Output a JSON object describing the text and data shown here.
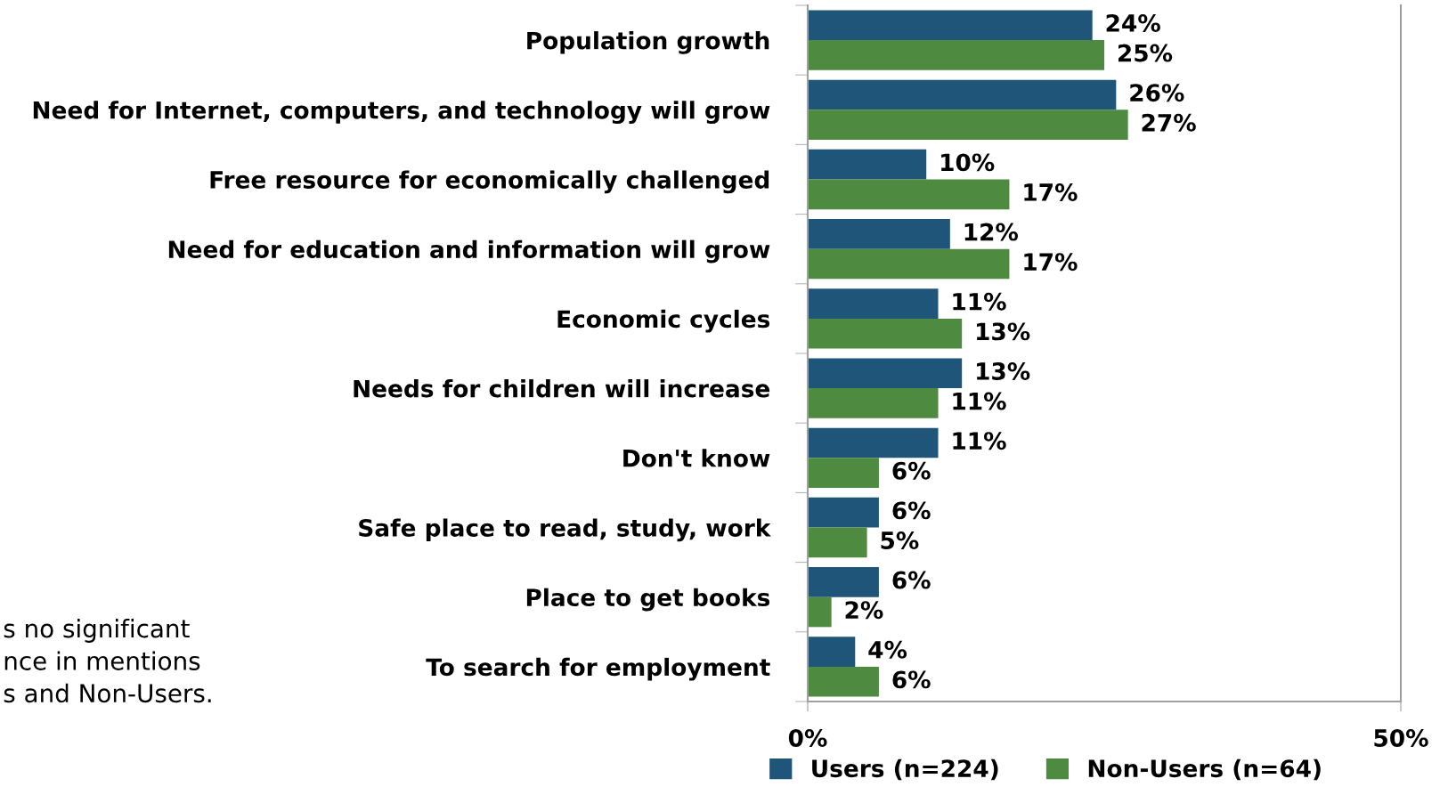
{
  "chart_data": {
    "type": "bar",
    "orientation": "horizontal",
    "categories": [
      "Population growth",
      "Need for Internet, computers, and technology will grow",
      "Free resource for economically challenged",
      "Need for education and information will grow",
      "Economic cycles",
      "Needs for children will increase",
      "Don't know",
      "Safe place to read, study, work",
      "Place to get books",
      "To search for employment"
    ],
    "series": [
      {
        "name": "Users (n=224)",
        "color": "#1f5578",
        "values": [
          24,
          26,
          10,
          12,
          11,
          13,
          11,
          6,
          6,
          4
        ],
        "value_labels": [
          "24%",
          "26%",
          "10%",
          "12%",
          "11%",
          "13%",
          "11%",
          "6%",
          "6%",
          "4%"
        ]
      },
      {
        "name": "Non-Users (n=64)",
        "color": "#4e8a3f",
        "values": [
          25,
          27,
          17,
          17,
          13,
          11,
          6,
          5,
          2,
          6
        ],
        "value_labels": [
          "25%",
          "27%",
          "17%",
          "17%",
          "13%",
          "11%",
          "6%",
          "5%",
          "2%",
          "6%"
        ]
      }
    ],
    "xlim": [
      0,
      50
    ],
    "xticks": [
      {
        "value": 0,
        "label": "0%"
      },
      {
        "value": 50,
        "label": "50%"
      }
    ],
    "legend": "bottom",
    "annotations": [
      "s no significant\nnce in mentions\ns and Non-Users."
    ]
  }
}
